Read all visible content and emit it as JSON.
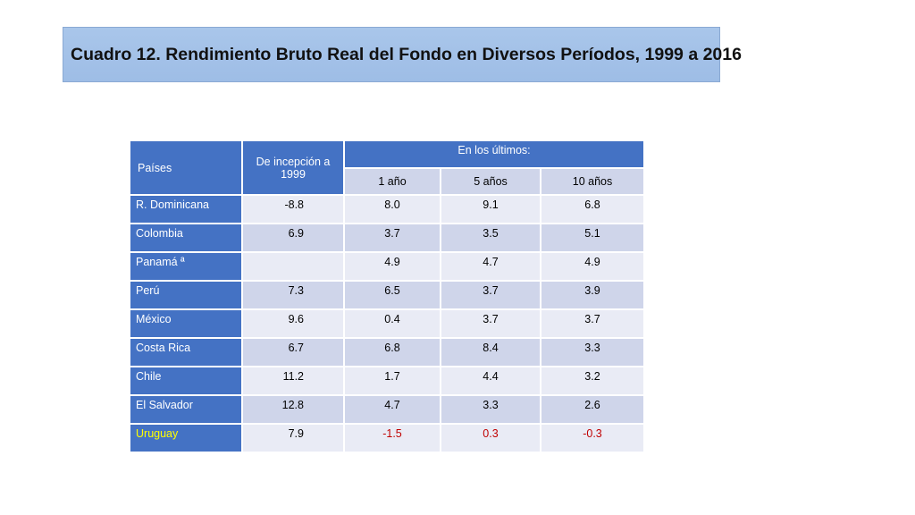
{
  "title": "Cuadro 12. Rendimiento Bruto Real del Fondo en Diversos Períodos, 1999 a 2016",
  "table": {
    "col_country": "Países",
    "col_inception": "De incepción a 1999",
    "col_group": "En los últimos:",
    "col_1y": "1 año",
    "col_5y": "5 años",
    "col_10y": "10 años",
    "rows": [
      {
        "country": "R. Dominicana",
        "inception": "-8.8",
        "y1": "8.0",
        "y5": "9.1",
        "y10": "6.8"
      },
      {
        "country": "Colombia",
        "inception": "6.9",
        "y1": "3.7",
        "y5": "3.5",
        "y10": "5.1"
      },
      {
        "country": "Panamá ª",
        "inception": "",
        "y1": "4.9",
        "y5": "4.7",
        "y10": "4.9"
      },
      {
        "country": "Perú",
        "inception": "7.3",
        "y1": "6.5",
        "y5": "3.7",
        "y10": "3.9"
      },
      {
        "country": "México",
        "inception": "9.6",
        "y1": "0.4",
        "y5": "3.7",
        "y10": "3.7"
      },
      {
        "country": "Costa Rica",
        "inception": "6.7",
        "y1": "6.8",
        "y5": "8.4",
        "y10": "3.3"
      },
      {
        "country": "Chile",
        "inception": "11.2",
        "y1": "1.7",
        "y5": "4.4",
        "y10": "3.2"
      },
      {
        "country": "El Salvador",
        "inception": "12.8",
        "y1": "4.7",
        "y5": "3.3",
        "y10": "2.6"
      },
      {
        "country": "Uruguay",
        "inception": "7.9",
        "y1": "-1.5",
        "y5": "0.3",
        "y10": "-0.3"
      }
    ]
  },
  "colors": {
    "header_blue": "#4472c4",
    "title_box": "#a9c6ea",
    "highlight_country": "#ffff00",
    "negative_red": "#c00000"
  }
}
